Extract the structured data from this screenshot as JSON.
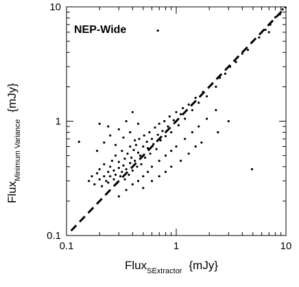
{
  "chart_data": {
    "type": "scatter",
    "title": "NEP-Wide",
    "xlabel": {
      "main": "Flux",
      "sub": "SExtractor",
      "unit": "{mJy}"
    },
    "ylabel": {
      "main": "Flux",
      "sub": "Minimum Variance",
      "unit": "{mJy}"
    },
    "x_scale": "log",
    "y_scale": "log",
    "xlim": [
      0.1,
      10
    ],
    "ylim": [
      0.1,
      10
    ],
    "x_ticks": [
      {
        "value": 0.1,
        "label": "0.1"
      },
      {
        "value": 1,
        "label": "1"
      },
      {
        "value": 10,
        "label": "10"
      }
    ],
    "y_ticks": [
      {
        "value": 0.1,
        "label": "0.1"
      },
      {
        "value": 1,
        "label": "1"
      },
      {
        "value": 10,
        "label": "10"
      }
    ],
    "grid": false,
    "reference_line": {
      "style": "dashed",
      "x": [
        0.11,
        10
      ],
      "y": [
        0.11,
        10
      ]
    },
    "points": [
      [
        0.16,
        0.3
      ],
      [
        0.17,
        0.33
      ],
      [
        0.18,
        0.28
      ],
      [
        0.19,
        0.35
      ],
      [
        0.2,
        0.31
      ],
      [
        0.2,
        0.38
      ],
      [
        0.21,
        0.27
      ],
      [
        0.22,
        0.33
      ],
      [
        0.22,
        0.42
      ],
      [
        0.23,
        0.3
      ],
      [
        0.24,
        0.36
      ],
      [
        0.24,
        0.29
      ],
      [
        0.25,
        0.4
      ],
      [
        0.25,
        0.33
      ],
      [
        0.26,
        0.45
      ],
      [
        0.27,
        0.31
      ],
      [
        0.27,
        0.37
      ],
      [
        0.28,
        0.34
      ],
      [
        0.28,
        0.5
      ],
      [
        0.29,
        0.29
      ],
      [
        0.3,
        0.39
      ],
      [
        0.3,
        0.44
      ],
      [
        0.31,
        0.33
      ],
      [
        0.32,
        0.36
      ],
      [
        0.32,
        0.55
      ],
      [
        0.33,
        0.41
      ],
      [
        0.34,
        0.31
      ],
      [
        0.34,
        0.47
      ],
      [
        0.35,
        0.38
      ],
      [
        0.36,
        0.52
      ],
      [
        0.37,
        0.34
      ],
      [
        0.38,
        0.43
      ],
      [
        0.38,
        0.6
      ],
      [
        0.39,
        0.48
      ],
      [
        0.4,
        0.37
      ],
      [
        0.41,
        0.56
      ],
      [
        0.42,
        0.45
      ],
      [
        0.43,
        0.62
      ],
      [
        0.44,
        0.4
      ],
      [
        0.45,
        0.53
      ],
      [
        0.46,
        0.7
      ],
      [
        0.47,
        0.5
      ],
      [
        0.48,
        0.42
      ],
      [
        0.5,
        0.6
      ],
      [
        0.51,
        0.75
      ],
      [
        0.52,
        0.48
      ],
      [
        0.54,
        0.66
      ],
      [
        0.55,
        0.58
      ],
      [
        0.57,
        0.8
      ],
      [
        0.58,
        0.52
      ],
      [
        0.6,
        0.7
      ],
      [
        0.62,
        0.63
      ],
      [
        0.64,
        0.88
      ],
      [
        0.66,
        0.57
      ],
      [
        0.68,
        0.76
      ],
      [
        0.7,
        0.95
      ],
      [
        0.72,
        0.68
      ],
      [
        0.75,
        0.82
      ],
      [
        0.78,
        1.0
      ],
      [
        0.8,
        0.74
      ],
      [
        0.84,
        0.9
      ],
      [
        0.87,
        1.1
      ],
      [
        0.9,
        0.8
      ],
      [
        0.95,
        1.02
      ],
      [
        1.0,
        1.2
      ],
      [
        1.05,
        0.92
      ],
      [
        1.1,
        1.15
      ],
      [
        1.15,
        1.3
      ],
      [
        1.2,
        1.05
      ],
      [
        1.3,
        1.4
      ],
      [
        1.4,
        1.25
      ],
      [
        1.5,
        1.6
      ],
      [
        1.6,
        1.45
      ],
      [
        1.75,
        1.8
      ],
      [
        1.9,
        1.65
      ],
      [
        2.1,
        2.1
      ],
      [
        2.3,
        2.0
      ],
      [
        2.5,
        2.4
      ],
      [
        2.8,
        2.6
      ],
      [
        3.1,
        3.0
      ],
      [
        3.5,
        3.3
      ],
      [
        4.0,
        3.9
      ],
      [
        4.5,
        4.2
      ],
      [
        5.0,
        5.0
      ],
      [
        5.7,
        5.4
      ],
      [
        6.5,
        6.3
      ],
      [
        7.2,
        7.0
      ],
      [
        8.0,
        8.1
      ],
      [
        8.8,
        8.6
      ],
      [
        9.3,
        9.5
      ],
      [
        0.3,
        0.22
      ],
      [
        0.35,
        0.25
      ],
      [
        0.4,
        0.28
      ],
      [
        0.45,
        0.3
      ],
      [
        0.5,
        0.33
      ],
      [
        0.55,
        0.36
      ],
      [
        0.6,
        0.4
      ],
      [
        0.7,
        0.45
      ],
      [
        0.8,
        0.5
      ],
      [
        0.9,
        0.55
      ],
      [
        1.0,
        0.6
      ],
      [
        1.2,
        0.7
      ],
      [
        1.4,
        0.8
      ],
      [
        1.6,
        0.9
      ],
      [
        1.9,
        1.05
      ],
      [
        2.3,
        1.25
      ],
      [
        0.6,
        0.3
      ],
      [
        0.7,
        0.33
      ],
      [
        0.9,
        0.4
      ],
      [
        1.1,
        0.45
      ],
      [
        1.3,
        0.52
      ],
      [
        0.5,
        0.26
      ],
      [
        0.8,
        0.36
      ],
      [
        1.5,
        0.6
      ],
      [
        0.19,
        0.55
      ],
      [
        0.22,
        0.65
      ],
      [
        0.25,
        0.75
      ],
      [
        0.28,
        0.62
      ],
      [
        0.3,
        0.85
      ],
      [
        0.24,
        0.9
      ],
      [
        0.35,
        1.0
      ],
      [
        0.4,
        1.2
      ],
      [
        0.45,
        0.95
      ],
      [
        0.33,
        0.72
      ],
      [
        0.38,
        0.8
      ],
      [
        0.42,
        0.68
      ],
      [
        0.13,
        0.66
      ],
      [
        0.68,
        6.2
      ],
      [
        4.9,
        0.38
      ],
      [
        0.2,
        0.95
      ],
      [
        3.0,
        1.0
      ],
      [
        2.4,
        0.8
      ],
      [
        7.0,
        6.0
      ],
      [
        1.7,
        0.65
      ]
    ]
  }
}
